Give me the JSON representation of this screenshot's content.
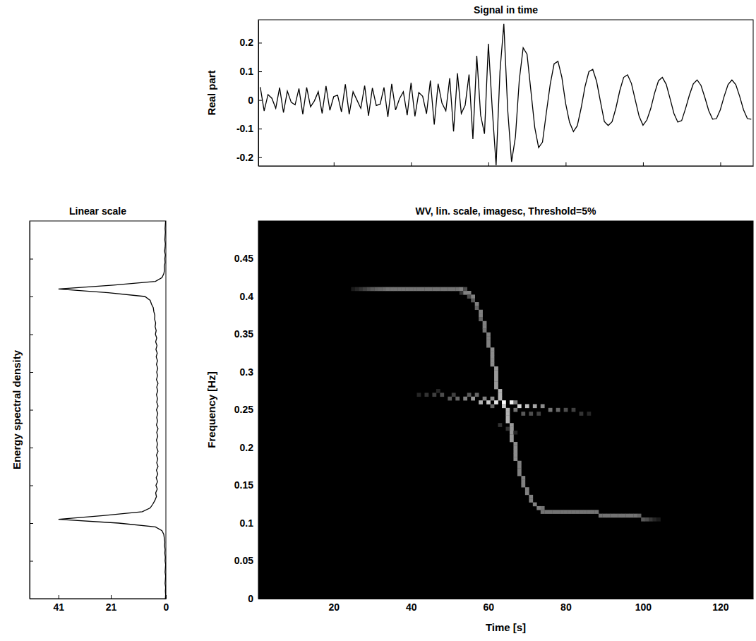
{
  "chart_data": [
    {
      "type": "line",
      "title": "Signal in time",
      "ylabel": "Real part",
      "color": "#000000",
      "tick_labels": "y",
      "xlim": [
        0.5,
        128.5
      ],
      "xticks": [
        20,
        40,
        60,
        80,
        100,
        120
      ],
      "ylim": [
        -0.23,
        0.28
      ],
      "yticks": [
        -0.2,
        -0.1,
        0,
        0.1,
        0.2
      ],
      "x": [
        1,
        2,
        3,
        4,
        5,
        6,
        7,
        8,
        9,
        10,
        11,
        12,
        13,
        14,
        15,
        16,
        17,
        18,
        19,
        20,
        21,
        22,
        23,
        24,
        25,
        26,
        27,
        28,
        29,
        30,
        31,
        32,
        33,
        34,
        35,
        36,
        37,
        38,
        39,
        40,
        41,
        42,
        43,
        44,
        45,
        46,
        47,
        48,
        49,
        50,
        51,
        52,
        53,
        54,
        55,
        56,
        57,
        58,
        59,
        60,
        61,
        62,
        63,
        64,
        65,
        66,
        67,
        68,
        69,
        70,
        71,
        72,
        73,
        74,
        75,
        76,
        77,
        78,
        79,
        80,
        81,
        82,
        83,
        84,
        85,
        86,
        87,
        88,
        89,
        90,
        91,
        92,
        93,
        94,
        95,
        96,
        97,
        98,
        99,
        100,
        101,
        102,
        103,
        104,
        105,
        106,
        107,
        108,
        109,
        110,
        111,
        112,
        113,
        114,
        115,
        116,
        117,
        118,
        119,
        120,
        121,
        122,
        123,
        124,
        125,
        126,
        127,
        128
      ],
      "values": [
        0.045,
        -0.038,
        0.019,
        0.006,
        -0.029,
        0.043,
        -0.044,
        0.031,
        -0.008,
        -0.017,
        0.04,
        -0.05,
        0.044,
        -0.024,
        -0.003,
        0.029,
        -0.047,
        0.049,
        -0.036,
        0.012,
        0.017,
        -0.042,
        0.055,
        -0.05,
        0.029,
        0,
        -0.029,
        0.05,
        -0.055,
        0.042,
        -0.019,
        -0.015,
        0.044,
        -0.059,
        0.056,
        -0.035,
        0.004,
        0.029,
        -0.053,
        0.06,
        -0.057,
        0.026,
        0.013,
        -0.048,
        0.068,
        -0.086,
        0.057,
        -0.011,
        -0.038,
        0.076,
        -0.11,
        0.093,
        -0.047,
        -0.018,
        0.089,
        -0.136,
        0.154,
        -0.053,
        -0.118,
        0.196,
        -0.03,
        -0.228,
        0.099,
        0.266,
        -0.034,
        -0.216,
        -0.129,
        0.07,
        0.182,
        0.16,
        0.032,
        -0.096,
        -0.166,
        -0.147,
        -0.044,
        0.055,
        0.126,
        0.135,
        0.08,
        -0.013,
        -0.078,
        -0.11,
        -0.09,
        -0.028,
        0.047,
        0.099,
        0.107,
        0.065,
        -0.006,
        -0.075,
        -0.089,
        -0.076,
        -0.028,
        0.033,
        0.079,
        0.088,
        0.058,
        0,
        -0.057,
        -0.088,
        -0.07,
        -0.03,
        0.024,
        0.067,
        0.079,
        0.055,
        0.005,
        -0.047,
        -0.077,
        -0.072,
        -0.03,
        0.017,
        0.056,
        0.07,
        0.051,
        0.009,
        -0.037,
        -0.067,
        -0.065,
        -0.034,
        0.013,
        0.054,
        0.07,
        0.054,
        0.013,
        -0.034,
        -0.065,
        -0.067
      ]
    },
    {
      "type": "line",
      "title": "Linear scale",
      "ylabel": "Energy spectral density",
      "color": "#000000",
      "tick_labels": "x",
      "xlim": [
        52,
        0
      ],
      "xticks": [
        41,
        21,
        0
      ],
      "ylim": [
        0,
        0.5
      ],
      "yticks": [
        0,
        0.05,
        0.1,
        0.15,
        0.2,
        0.25,
        0.3,
        0.35,
        0.4,
        0.45
      ],
      "x": [
        0.2,
        0.1,
        0.2,
        0.1,
        0.3,
        0.2,
        0.1,
        0.3,
        0.2,
        0.1,
        0.3,
        0.2,
        0.4,
        0.3,
        0.5,
        0.4,
        0.6,
        0.8,
        1.5,
        4,
        18,
        41,
        24,
        9,
        6,
        5,
        4.2,
        3.6,
        3.9,
        3.3,
        3.8,
        3.2,
        3.7,
        3.1,
        3.6,
        3.0,
        3.5,
        3.1,
        3.6,
        3.0,
        3.5,
        3.2,
        3.6,
        3.1,
        3.5,
        3.0,
        3.6,
        3.2,
        3.5,
        3.1,
        3.6,
        3.0,
        3.5,
        3.2,
        3.6,
        3.1,
        3.5,
        3.0,
        3.6,
        3.2,
        3.5,
        3.1,
        3.6,
        3.2,
        3.7,
        3.3,
        3.8,
        3.4,
        3.9,
        3.5,
        4.0,
        3.7,
        4.1,
        3.9,
        4.3,
        4.2,
        4.6,
        4.8,
        5.5,
        6,
        8,
        22,
        41,
        20,
        4,
        1.5,
        0.8,
        0.5,
        0.6,
        0.3,
        0.4,
        0.2,
        0.5,
        0.3,
        0.2,
        0.4,
        0.3,
        0.2,
        0.3,
        0.2,
        0.1
      ],
      "y": [
        0,
        0.005,
        0.01,
        0.015,
        0.02,
        0.025,
        0.03,
        0.035,
        0.04,
        0.045,
        0.05,
        0.055,
        0.06,
        0.065,
        0.07,
        0.075,
        0.08,
        0.085,
        0.09,
        0.095,
        0.1,
        0.105,
        0.11,
        0.115,
        0.12,
        0.125,
        0.13,
        0.135,
        0.14,
        0.145,
        0.15,
        0.155,
        0.16,
        0.165,
        0.17,
        0.175,
        0.18,
        0.185,
        0.19,
        0.195,
        0.2,
        0.205,
        0.21,
        0.215,
        0.22,
        0.225,
        0.23,
        0.235,
        0.24,
        0.245,
        0.25,
        0.255,
        0.26,
        0.265,
        0.27,
        0.275,
        0.28,
        0.285,
        0.29,
        0.295,
        0.3,
        0.305,
        0.31,
        0.315,
        0.32,
        0.325,
        0.33,
        0.335,
        0.34,
        0.345,
        0.35,
        0.355,
        0.36,
        0.365,
        0.37,
        0.375,
        0.38,
        0.385,
        0.39,
        0.395,
        0.4,
        0.405,
        0.41,
        0.415,
        0.42,
        0.425,
        0.43,
        0.435,
        0.44,
        0.445,
        0.45,
        0.455,
        0.46,
        0.465,
        0.47,
        0.475,
        0.48,
        0.485,
        0.49,
        0.495,
        0.5
      ]
    },
    {
      "type": "heatmap",
      "title": "WV, lin. scale, imagesc, Threshold=5%",
      "xlabel": "Time [s]",
      "ylabel": "Frequency [Hz]",
      "xlim": [
        0.5,
        128.5
      ],
      "xticks": [
        20,
        40,
        60,
        80,
        100,
        120
      ],
      "ylim": [
        0,
        0.5
      ],
      "yticks": [
        0,
        0.05,
        0.1,
        0.15,
        0.2,
        0.25,
        0.3,
        0.35,
        0.4,
        0.45
      ],
      "cells": [
        [
          25,
          0.41,
          0.1
        ],
        [
          26,
          0.41,
          0.15
        ],
        [
          27,
          0.41,
          0.2
        ],
        [
          28,
          0.41,
          0.25
        ],
        [
          29,
          0.41,
          0.3
        ],
        [
          30,
          0.41,
          0.35
        ],
        [
          31,
          0.41,
          0.38
        ],
        [
          32,
          0.41,
          0.4
        ],
        [
          33,
          0.41,
          0.42
        ],
        [
          34,
          0.41,
          0.45
        ],
        [
          35,
          0.41,
          0.45
        ],
        [
          36,
          0.41,
          0.45
        ],
        [
          37,
          0.41,
          0.45
        ],
        [
          38,
          0.41,
          0.45
        ],
        [
          39,
          0.41,
          0.45
        ],
        [
          40,
          0.41,
          0.45
        ],
        [
          41,
          0.41,
          0.45
        ],
        [
          42,
          0.41,
          0.45
        ],
        [
          43,
          0.41,
          0.45
        ],
        [
          44,
          0.41,
          0.45
        ],
        [
          45,
          0.41,
          0.45
        ],
        [
          46,
          0.41,
          0.45
        ],
        [
          47,
          0.41,
          0.45
        ],
        [
          48,
          0.41,
          0.45
        ],
        [
          49,
          0.41,
          0.45
        ],
        [
          50,
          0.41,
          0.45
        ],
        [
          51,
          0.41,
          0.45
        ],
        [
          52,
          0.41,
          0.45
        ],
        [
          53,
          0.41,
          0.5
        ],
        [
          53,
          0.405,
          0.2
        ],
        [
          54,
          0.405,
          0.5
        ],
        [
          54,
          0.41,
          0.3
        ],
        [
          55,
          0.405,
          0.5
        ],
        [
          55,
          0.4,
          0.3
        ],
        [
          56,
          0.4,
          0.5
        ],
        [
          56,
          0.395,
          0.35
        ],
        [
          57,
          0.39,
          0.5
        ],
        [
          57,
          0.385,
          0.4
        ],
        [
          58,
          0.38,
          0.5
        ],
        [
          58,
          0.375,
          0.5
        ],
        [
          58,
          0.37,
          0.4
        ],
        [
          59,
          0.365,
          0.5
        ],
        [
          59,
          0.36,
          0.5
        ],
        [
          59,
          0.355,
          0.45
        ],
        [
          60,
          0.35,
          0.5
        ],
        [
          60,
          0.345,
          0.5
        ],
        [
          60,
          0.34,
          0.5
        ],
        [
          60,
          0.335,
          0.5
        ],
        [
          61,
          0.33,
          0.55
        ],
        [
          61,
          0.325,
          0.55
        ],
        [
          61,
          0.32,
          0.55
        ],
        [
          61,
          0.315,
          0.55
        ],
        [
          61,
          0.31,
          0.55
        ],
        [
          62,
          0.305,
          0.6
        ],
        [
          62,
          0.3,
          0.6
        ],
        [
          62,
          0.295,
          0.6
        ],
        [
          62,
          0.29,
          0.6
        ],
        [
          62,
          0.285,
          0.6
        ],
        [
          62,
          0.28,
          0.6
        ],
        [
          63,
          0.275,
          0.7
        ],
        [
          63,
          0.27,
          0.7
        ],
        [
          63,
          0.265,
          0.7
        ],
        [
          64,
          0.26,
          1
        ],
        [
          64,
          0.255,
          0.8
        ],
        [
          65,
          0.25,
          0.7
        ],
        [
          65,
          0.245,
          0.7
        ],
        [
          65,
          0.24,
          0.7
        ],
        [
          65,
          0.235,
          0.7
        ],
        [
          66,
          0.23,
          0.6
        ],
        [
          66,
          0.225,
          0.6
        ],
        [
          66,
          0.22,
          0.6
        ],
        [
          66,
          0.215,
          0.6
        ],
        [
          66,
          0.21,
          0.6
        ],
        [
          67,
          0.205,
          0.55
        ],
        [
          67,
          0.2,
          0.55
        ],
        [
          67,
          0.195,
          0.55
        ],
        [
          67,
          0.19,
          0.55
        ],
        [
          67,
          0.185,
          0.55
        ],
        [
          68,
          0.18,
          0.5
        ],
        [
          68,
          0.175,
          0.5
        ],
        [
          68,
          0.17,
          0.5
        ],
        [
          68,
          0.165,
          0.5
        ],
        [
          69,
          0.16,
          0.5
        ],
        [
          69,
          0.155,
          0.5
        ],
        [
          69,
          0.15,
          0.5
        ],
        [
          70,
          0.145,
          0.5
        ],
        [
          70,
          0.14,
          0.5
        ],
        [
          71,
          0.135,
          0.5
        ],
        [
          71,
          0.13,
          0.5
        ],
        [
          72,
          0.125,
          0.5
        ],
        [
          73,
          0.12,
          0.5
        ],
        [
          74,
          0.12,
          0.45
        ],
        [
          74,
          0.115,
          0.45
        ],
        [
          75,
          0.115,
          0.45
        ],
        [
          76,
          0.115,
          0.45
        ],
        [
          77,
          0.115,
          0.45
        ],
        [
          78,
          0.115,
          0.45
        ],
        [
          79,
          0.115,
          0.45
        ],
        [
          80,
          0.115,
          0.45
        ],
        [
          81,
          0.115,
          0.45
        ],
        [
          82,
          0.115,
          0.45
        ],
        [
          83,
          0.115,
          0.45
        ],
        [
          84,
          0.115,
          0.45
        ],
        [
          85,
          0.115,
          0.45
        ],
        [
          86,
          0.115,
          0.45
        ],
        [
          87,
          0.115,
          0.45
        ],
        [
          88,
          0.115,
          0.45
        ],
        [
          89,
          0.11,
          0.45
        ],
        [
          90,
          0.11,
          0.45
        ],
        [
          91,
          0.11,
          0.45
        ],
        [
          92,
          0.11,
          0.45
        ],
        [
          93,
          0.11,
          0.45
        ],
        [
          94,
          0.11,
          0.45
        ],
        [
          95,
          0.11,
          0.45
        ],
        [
          96,
          0.11,
          0.45
        ],
        [
          97,
          0.11,
          0.45
        ],
        [
          98,
          0.11,
          0.45
        ],
        [
          99,
          0.11,
          0.4
        ],
        [
          100,
          0.105,
          0.35
        ],
        [
          101,
          0.105,
          0.3
        ],
        [
          102,
          0.105,
          0.22
        ],
        [
          103,
          0.105,
          0.15
        ],
        [
          104,
          0.105,
          0.1
        ],
        [
          42,
          0.27,
          0.15
        ],
        [
          44,
          0.27,
          0.2
        ],
        [
          46,
          0.27,
          0.25
        ],
        [
          48,
          0.27,
          0.3
        ],
        [
          50,
          0.265,
          0.35
        ],
        [
          52,
          0.265,
          0.4
        ],
        [
          54,
          0.265,
          0.5
        ],
        [
          56,
          0.265,
          0.6
        ],
        [
          58,
          0.26,
          0.7
        ],
        [
          60,
          0.26,
          0.8
        ],
        [
          62,
          0.26,
          0.9
        ],
        [
          66,
          0.26,
          0.95
        ],
        [
          68,
          0.255,
          0.85
        ],
        [
          70,
          0.255,
          0.75
        ],
        [
          72,
          0.255,
          0.65
        ],
        [
          74,
          0.255,
          0.55
        ],
        [
          76,
          0.25,
          0.45
        ],
        [
          78,
          0.25,
          0.4
        ],
        [
          80,
          0.25,
          0.3
        ],
        [
          82,
          0.25,
          0.25
        ],
        [
          84,
          0.245,
          0.2
        ],
        [
          86,
          0.245,
          0.15
        ],
        [
          47,
          0.275,
          0.15
        ],
        [
          51,
          0.27,
          0.25
        ],
        [
          55,
          0.27,
          0.35
        ],
        [
          57,
          0.27,
          0.4
        ],
        [
          59,
          0.265,
          0.5
        ],
        [
          61,
          0.265,
          0.55
        ],
        [
          67,
          0.26,
          0.5
        ],
        [
          61,
          0.255,
          0.4
        ],
        [
          67,
          0.25,
          0.45
        ],
        [
          69,
          0.245,
          0.35
        ],
        [
          71,
          0.245,
          0.3
        ],
        [
          73,
          0.245,
          0.25
        ],
        [
          63,
          0.23,
          0.2
        ],
        [
          65,
          0.225,
          0.2
        ],
        [
          67,
          0.22,
          0.15
        ]
      ]
    }
  ]
}
